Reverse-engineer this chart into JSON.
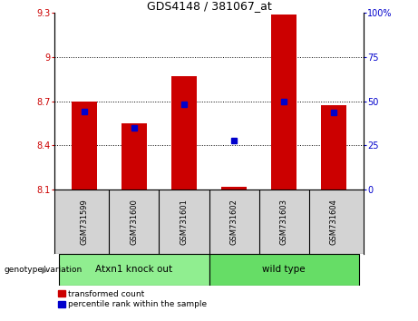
{
  "title": "GDS4148 / 381067_at",
  "samples": [
    "GSM731599",
    "GSM731600",
    "GSM731601",
    "GSM731602",
    "GSM731603",
    "GSM731604"
  ],
  "red_values": [
    8.7,
    8.55,
    8.87,
    8.12,
    9.29,
    8.67
  ],
  "blue_values": [
    8.63,
    8.52,
    8.68,
    8.43,
    8.7,
    8.62
  ],
  "ylim_left": [
    8.1,
    9.3
  ],
  "ylim_right": [
    0,
    100
  ],
  "yticks_left": [
    8.1,
    8.4,
    8.7,
    9.0,
    9.3
  ],
  "yticks_right": [
    0,
    25,
    50,
    75,
    100
  ],
  "ytick_labels_left": [
    "8.1",
    "8.4",
    "8.7",
    "9",
    "9.3"
  ],
  "ytick_labels_right": [
    "0",
    "25",
    "50",
    "75",
    "100%"
  ],
  "groups": [
    {
      "label": "Atxn1 knock out",
      "start": 0,
      "end": 2,
      "color": "#90EE90"
    },
    {
      "label": "wild type",
      "start": 3,
      "end": 5,
      "color": "#66DD66"
    }
  ],
  "group_label_prefix": "genotype/variation",
  "legend_red": "transformed count",
  "legend_blue": "percentile rank within the sample",
  "red_color": "#CC0000",
  "blue_color": "#0000CC",
  "bar_width": 0.5,
  "bg_color_plot": "#ffffff",
  "bg_color_xlabel": "#d3d3d3",
  "grid_color": "black",
  "grid_linestyle": "dotted"
}
